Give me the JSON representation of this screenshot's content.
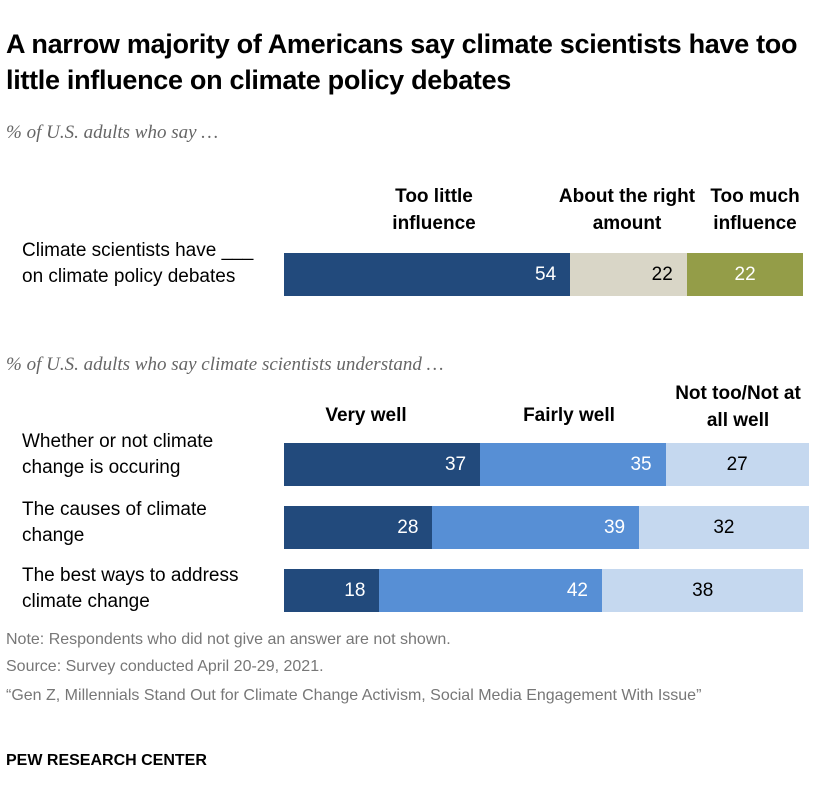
{
  "title": "A narrow majority of Americans say climate scientists have too little influence on climate policy debates",
  "colors": {
    "dark_blue": "#224a7c",
    "mid_blue": "#578fd5",
    "light_blue": "#c5d8ef",
    "beige": "#d9d6c7",
    "olive": "#949d48"
  },
  "chart_data": [
    {
      "type": "bar",
      "orientation": "horizontal-stacked",
      "subtitle": "% of U.S. adults who say …",
      "categories": [
        "Climate scientists have ___ on climate policy debates"
      ],
      "series": [
        {
          "name": "Too little influence",
          "values": [
            54
          ],
          "color": "#224a7c"
        },
        {
          "name": "About the right amount",
          "values": [
            22
          ],
          "color": "#d9d6c7"
        },
        {
          "name": "Too much influence",
          "values": [
            22
          ],
          "color": "#949d48"
        }
      ]
    },
    {
      "type": "bar",
      "orientation": "horizontal-stacked",
      "subtitle": "% of U.S. adults who say climate scientists understand …",
      "categories": [
        "Whether or not climate change is occuring",
        "The causes of climate change",
        "The best ways to address climate change"
      ],
      "series": [
        {
          "name": "Very well",
          "values": [
            37,
            28,
            18
          ],
          "color": "#224a7c"
        },
        {
          "name": "Fairly well",
          "values": [
            35,
            39,
            42
          ],
          "color": "#578fd5"
        },
        {
          "name": "Not too/Not at all well",
          "values": [
            27,
            32,
            38
          ],
          "color": "#c5d8ef"
        }
      ]
    }
  ],
  "notes": [
    "Note: Respondents who did not give an answer are not shown.",
    "Source: Survey conducted April 20-29, 2021.",
    "“Gen Z, Millennials Stand Out for Climate Change Activism, Social Media Engagement With Issue”"
  ],
  "brand": "PEW RESEARCH CENTER"
}
